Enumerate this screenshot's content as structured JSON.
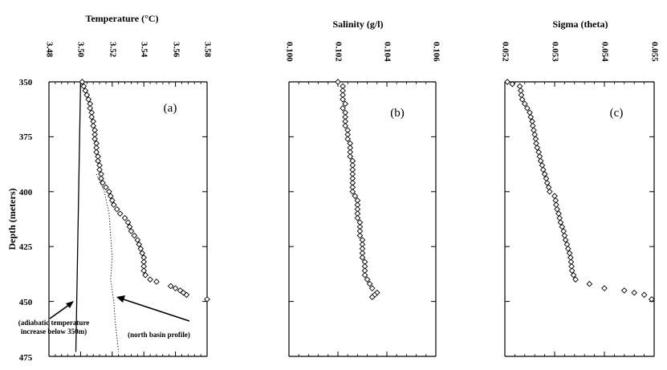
{
  "chart_data": [
    {
      "type": "scatter",
      "panel_label": "(a)",
      "title": "Temperature (°C)",
      "ylabel": "Depth (meters)",
      "xlim": [
        3.48,
        3.58
      ],
      "ylim": [
        350,
        475
      ],
      "y_inverted": true,
      "x_ticks": [
        "3.48",
        "3.50",
        "3.52",
        "3.54",
        "3.56",
        "3.58"
      ],
      "y_ticks": [
        "350",
        "375",
        "400",
        "425",
        "450",
        "475"
      ],
      "marker": "open-diamond",
      "series": [
        {
          "points": [
            [
              3.501,
              350
            ],
            [
              3.502,
              352
            ],
            [
              3.503,
              354
            ],
            [
              3.504,
              356
            ],
            [
              3.505,
              358
            ],
            [
              3.506,
              360
            ],
            [
              3.506,
              362
            ],
            [
              3.507,
              364
            ],
            [
              3.507,
              366
            ],
            [
              3.508,
              368
            ],
            [
              3.508,
              370
            ],
            [
              3.509,
              372
            ],
            [
              3.509,
              374
            ],
            [
              3.509,
              376
            ],
            [
              3.51,
              378
            ],
            [
              3.51,
              380
            ],
            [
              3.51,
              382
            ],
            [
              3.511,
              384
            ],
            [
              3.511,
              386
            ],
            [
              3.512,
              388
            ],
            [
              3.512,
              390
            ],
            [
              3.513,
              392
            ],
            [
              3.513,
              394
            ],
            [
              3.514,
              396
            ],
            [
              3.516,
              398
            ],
            [
              3.518,
              400
            ],
            [
              3.519,
              402
            ],
            [
              3.52,
              404
            ],
            [
              3.521,
              406
            ],
            [
              3.523,
              408
            ],
            [
              3.525,
              410
            ],
            [
              3.528,
              412
            ],
            [
              3.53,
              414
            ],
            [
              3.531,
              416
            ],
            [
              3.532,
              418
            ],
            [
              3.534,
              420
            ],
            [
              3.536,
              422
            ],
            [
              3.537,
              424
            ],
            [
              3.538,
              426
            ],
            [
              3.539,
              428
            ],
            [
              3.54,
              430
            ],
            [
              3.54,
              432
            ],
            [
              3.54,
              434
            ],
            [
              3.54,
              436
            ],
            [
              3.541,
              438
            ],
            [
              3.544,
              440
            ],
            [
              3.548,
              441
            ],
            [
              3.557,
              443
            ],
            [
              3.56,
              444
            ],
            [
              3.563,
              445
            ],
            [
              3.565,
              446
            ],
            [
              3.567,
              447
            ],
            [
              3.58,
              449
            ]
          ]
        }
      ],
      "lines": [
        {
          "style": "solid",
          "points": [
            [
              3.5,
              350
            ],
            [
              3.497,
              473
            ]
          ]
        },
        {
          "style": "dotted",
          "points": [
            [
              3.51,
              392
            ],
            [
              3.515,
              400
            ],
            [
              3.518,
              410
            ],
            [
              3.519,
              420
            ],
            [
              3.52,
              430
            ],
            [
              3.519,
              440
            ],
            [
              3.521,
              450
            ],
            [
              3.522,
              460
            ],
            [
              3.524,
              473
            ]
          ]
        }
      ],
      "annotations": [
        {
          "text_lines": [
            "(adiabatic temperature",
            "increase below 350m)"
          ]
        },
        {
          "text": "(north basin profile)"
        }
      ]
    },
    {
      "type": "scatter",
      "panel_label": "(b)",
      "title": "Salinity (g/l)",
      "xlim": [
        0.1,
        0.106
      ],
      "ylim": [
        350,
        475
      ],
      "y_inverted": true,
      "x_ticks": [
        "0.100",
        "0.102",
        "0.104",
        "0.106"
      ],
      "marker": "open-diamond",
      "series": [
        {
          "points": [
            [
              0.102,
              350
            ],
            [
              0.1022,
              352
            ],
            [
              0.1022,
              354
            ],
            [
              0.1022,
              356
            ],
            [
              0.1022,
              358
            ],
            [
              0.1023,
              360
            ],
            [
              0.1022,
              362
            ],
            [
              0.1023,
              364
            ],
            [
              0.1023,
              366
            ],
            [
              0.1023,
              368
            ],
            [
              0.1023,
              370
            ],
            [
              0.1024,
              372
            ],
            [
              0.1024,
              374
            ],
            [
              0.1024,
              376
            ],
            [
              0.1025,
              378
            ],
            [
              0.1025,
              380
            ],
            [
              0.1025,
              382
            ],
            [
              0.1025,
              384
            ],
            [
              0.1026,
              386
            ],
            [
              0.1026,
              388
            ],
            [
              0.1026,
              390
            ],
            [
              0.1026,
              392
            ],
            [
              0.1026,
              394
            ],
            [
              0.1026,
              396
            ],
            [
              0.1026,
              398
            ],
            [
              0.1026,
              400
            ],
            [
              0.1027,
              402
            ],
            [
              0.1028,
              404
            ],
            [
              0.1028,
              406
            ],
            [
              0.1028,
              408
            ],
            [
              0.1028,
              410
            ],
            [
              0.1028,
              412
            ],
            [
              0.1029,
              414
            ],
            [
              0.1029,
              416
            ],
            [
              0.1029,
              418
            ],
            [
              0.1029,
              420
            ],
            [
              0.103,
              422
            ],
            [
              0.103,
              424
            ],
            [
              0.103,
              426
            ],
            [
              0.103,
              428
            ],
            [
              0.103,
              430
            ],
            [
              0.1031,
              432
            ],
            [
              0.1031,
              434
            ],
            [
              0.1031,
              436
            ],
            [
              0.1031,
              438
            ],
            [
              0.1032,
              440
            ],
            [
              0.1033,
              442
            ],
            [
              0.1034,
              444
            ],
            [
              0.1036,
              446
            ],
            [
              0.1035,
              447
            ],
            [
              0.1034,
              448
            ]
          ]
        }
      ]
    },
    {
      "type": "scatter",
      "panel_label": "(c)",
      "title": "Sigma (theta)",
      "xlim": [
        0.052,
        0.055
      ],
      "ylim": [
        350,
        475
      ],
      "y_inverted": true,
      "x_ticks": [
        "0.052",
        "0.053",
        "0.054",
        "0.055"
      ],
      "marker": "open-diamond",
      "series": [
        {
          "points": [
            [
              0.05205,
              350
            ],
            [
              0.05215,
              351
            ],
            [
              0.0523,
              352
            ],
            [
              0.05232,
              354
            ],
            [
              0.05233,
              356
            ],
            [
              0.05235,
              358
            ],
            [
              0.0524,
              360
            ],
            [
              0.05245,
              362
            ],
            [
              0.0525,
              364
            ],
            [
              0.05252,
              366
            ],
            [
              0.05255,
              368
            ],
            [
              0.05256,
              370
            ],
            [
              0.05258,
              372
            ],
            [
              0.0526,
              374
            ],
            [
              0.05262,
              376
            ],
            [
              0.05263,
              378
            ],
            [
              0.05265,
              380
            ],
            [
              0.05268,
              382
            ],
            [
              0.0527,
              384
            ],
            [
              0.05272,
              386
            ],
            [
              0.05275,
              388
            ],
            [
              0.05277,
              390
            ],
            [
              0.0528,
              392
            ],
            [
              0.05283,
              394
            ],
            [
              0.05285,
              396
            ],
            [
              0.05288,
              398
            ],
            [
              0.0529,
              400
            ],
            [
              0.053,
              402
            ],
            [
              0.05302,
              404
            ],
            [
              0.05303,
              406
            ],
            [
              0.05305,
              408
            ],
            [
              0.05308,
              410
            ],
            [
              0.0531,
              412
            ],
            [
              0.05312,
              414
            ],
            [
              0.05315,
              416
            ],
            [
              0.05318,
              418
            ],
            [
              0.0532,
              420
            ],
            [
              0.05322,
              422
            ],
            [
              0.05325,
              424
            ],
            [
              0.05327,
              426
            ],
            [
              0.0533,
              428
            ],
            [
              0.05332,
              430
            ],
            [
              0.05333,
              432
            ],
            [
              0.05334,
              434
            ],
            [
              0.05335,
              436
            ],
            [
              0.05338,
              438
            ],
            [
              0.05342,
              440
            ],
            [
              0.0537,
              442
            ],
            [
              0.054,
              444
            ],
            [
              0.0544,
              445
            ],
            [
              0.0546,
              446
            ],
            [
              0.0548,
              447
            ],
            [
              0.05495,
              449
            ]
          ]
        }
      ]
    }
  ]
}
